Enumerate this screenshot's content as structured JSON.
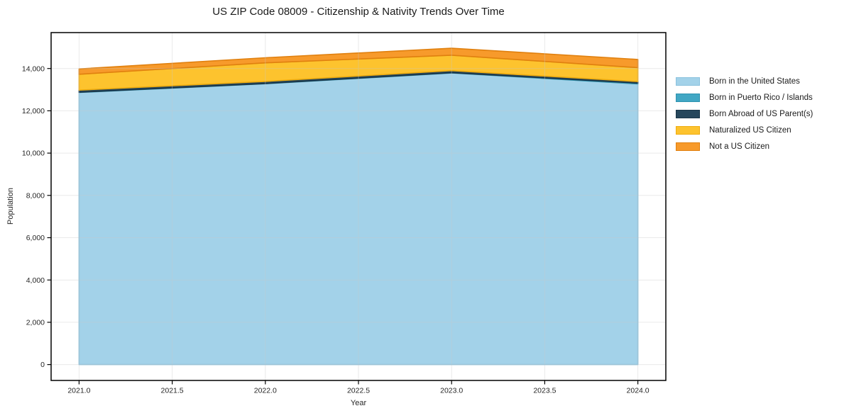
{
  "chart_data": {
    "type": "area",
    "stacked": true,
    "title": "US ZIP Code 08009 - Citizenship & Nativity Trends Over Time",
    "xlabel": "Year",
    "ylabel": "Population",
    "x": [
      2021,
      2022,
      2023,
      2024
    ],
    "series": [
      {
        "name": "Born in the United States",
        "values": [
          12870,
          13280,
          13790,
          13270
        ],
        "color": "#A3D2E9",
        "edge": "#8BC2DE"
      },
      {
        "name": "Born in Puerto Rico / Islands",
        "values": [
          10,
          10,
          10,
          40
        ],
        "color": "#41A7C4",
        "edge": "#2F93AF"
      },
      {
        "name": "Born Abroad of US Parent(s)",
        "values": [
          100,
          100,
          100,
          75
        ],
        "color": "#26475C",
        "edge": "#1A3648"
      },
      {
        "name": "Naturalized US Citizen",
        "values": [
          750,
          880,
          730,
          655
        ],
        "color": "#FDC32E",
        "edge": "#EFAC0E"
      },
      {
        "name": "Not a US Citizen",
        "values": [
          250,
          240,
          330,
          390
        ],
        "color": "#F79A2B",
        "edge": "#E0800F"
      }
    ],
    "stacked_totals": [
      13980,
      14510,
      14960,
      14430
    ],
    "xticks": [
      2021.0,
      2021.5,
      2022.0,
      2022.5,
      2023.0,
      2023.5,
      2024.0
    ],
    "xtick_labels": [
      "2021.0",
      "2021.5",
      "2022.0",
      "2022.5",
      "2023.0",
      "2023.5",
      "2024.0"
    ],
    "yticks": [
      0,
      2000,
      4000,
      6000,
      8000,
      10000,
      12000,
      14000
    ],
    "ytick_labels": [
      "0",
      "2,000",
      "4,000",
      "6,000",
      "8,000",
      "10,000",
      "12,000",
      "14,000"
    ],
    "xlim": [
      2020.85,
      2024.15
    ],
    "ylim": [
      -750,
      15700
    ],
    "grid": true,
    "legend_position": "right-outside"
  },
  "colors": {
    "background": "#ffffff",
    "spine": "#000000",
    "grid": "#c8c8c8",
    "tick_text": "#262626",
    "title_text": "#1a1a1a"
  }
}
